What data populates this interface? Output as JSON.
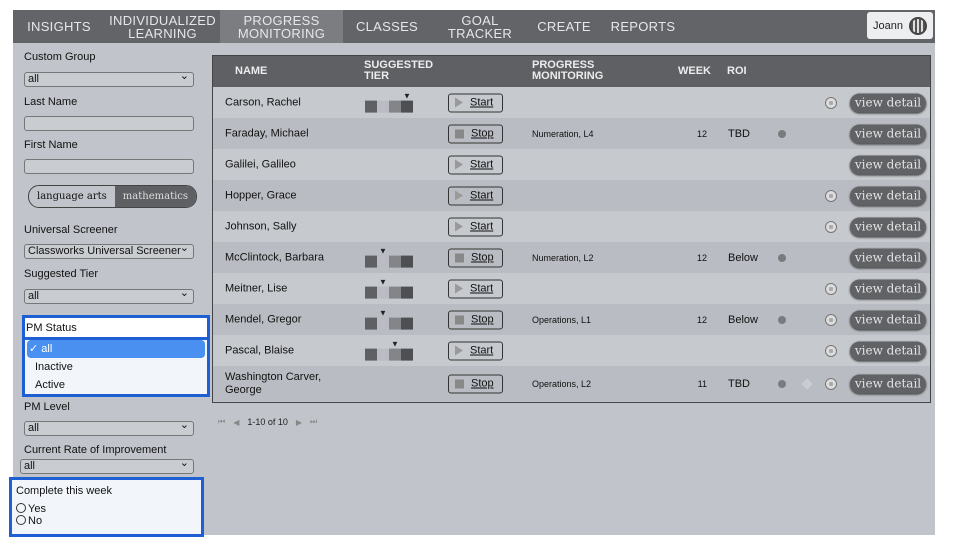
{
  "nav": {
    "items": [
      {
        "label": "INSIGHTS",
        "active": false
      },
      {
        "label": "INDIVIDUALIZED LEARNING",
        "active": false
      },
      {
        "label": "PROGRESS MONITORING",
        "active": true
      },
      {
        "label": "CLASSES",
        "active": false
      },
      {
        "label": "GOAL TRACKER",
        "active": false
      },
      {
        "label": "CREATE",
        "active": false
      },
      {
        "label": "REPORTS",
        "active": false
      }
    ],
    "user": "Joann"
  },
  "filters": {
    "custom_group": {
      "label": "Custom Group",
      "value": "all"
    },
    "last_name": {
      "label": "Last Name",
      "value": ""
    },
    "first_name": {
      "label": "First Name",
      "value": ""
    },
    "subject_toggle": {
      "options": [
        "language arts",
        "mathematics"
      ],
      "selected": "mathematics"
    },
    "universal_screener": {
      "label": "Universal Screener",
      "value": "Classworks Universal Screener"
    },
    "suggested_tier": {
      "label": "Suggested Tier",
      "value": "all"
    },
    "pm_status": {
      "label": "PM Status",
      "options": [
        "all",
        "Inactive",
        "Active"
      ],
      "selected": "all",
      "check": "✓"
    },
    "pm_level": {
      "label": "PM Level",
      "value": "all"
    },
    "rate_of_improvement": {
      "label": "Current Rate of Improvement",
      "value": "all"
    },
    "complete_this_week": {
      "label": "Complete this week",
      "options": [
        "Yes",
        "No"
      ]
    }
  },
  "table": {
    "headers": {
      "name": "NAME",
      "tier": "SUGGESTED TIER",
      "pm": "PROGRESS MONITORING",
      "week": "WEEK",
      "roi": "ROI"
    },
    "view_label": "view detail",
    "rows": [
      {
        "name": "Carson, Rachel",
        "tier": 4,
        "action": "Start",
        "pm": "",
        "week": "",
        "roi": "",
        "dot": false,
        "diamond": false,
        "globe": true
      },
      {
        "name": "Faraday, Michael",
        "tier": null,
        "action": "Stop",
        "pm": "Numeration, L4",
        "week": "12",
        "roi": "TBD",
        "dot": true,
        "diamond": false,
        "globe": false
      },
      {
        "name": "Galilei, Galileo",
        "tier": null,
        "action": "Start",
        "pm": "",
        "week": "",
        "roi": "",
        "dot": false,
        "diamond": false,
        "globe": false
      },
      {
        "name": "Hopper, Grace",
        "tier": null,
        "action": "Start",
        "pm": "",
        "week": "",
        "roi": "",
        "dot": false,
        "diamond": false,
        "globe": true
      },
      {
        "name": "Johnson, Sally",
        "tier": null,
        "action": "Start",
        "pm": "",
        "week": "",
        "roi": "",
        "dot": false,
        "diamond": false,
        "globe": true
      },
      {
        "name": "McClintock, Barbara",
        "tier": 2,
        "action": "Stop",
        "pm": "Numeration, L2",
        "week": "12",
        "roi": "Below",
        "dot": true,
        "diamond": false,
        "globe": false
      },
      {
        "name": "Meitner, Lise",
        "tier": 2,
        "action": "Start",
        "pm": "",
        "week": "",
        "roi": "",
        "dot": false,
        "diamond": false,
        "globe": true
      },
      {
        "name": "Mendel, Gregor",
        "tier": 2,
        "action": "Stop",
        "pm": "Operations, L1",
        "week": "12",
        "roi": "Below",
        "dot": true,
        "diamond": false,
        "globe": true
      },
      {
        "name": "Pascal, Blaise",
        "tier": 3,
        "action": "Start",
        "pm": "",
        "week": "",
        "roi": "",
        "dot": false,
        "diamond": false,
        "globe": true
      },
      {
        "name": "Washington Carver, George",
        "tier": null,
        "action": "Stop",
        "pm": "Operations, L2",
        "week": "11",
        "roi": "TBD",
        "dot": true,
        "diamond": true,
        "globe": true
      }
    ]
  },
  "pager": {
    "text": "1-10 of 10"
  },
  "colors": {
    "tier": [
      "#5f6064",
      "#b9bcc2",
      "#838589",
      "#4e4f53"
    ],
    "highlight": "#1f5fd4"
  }
}
